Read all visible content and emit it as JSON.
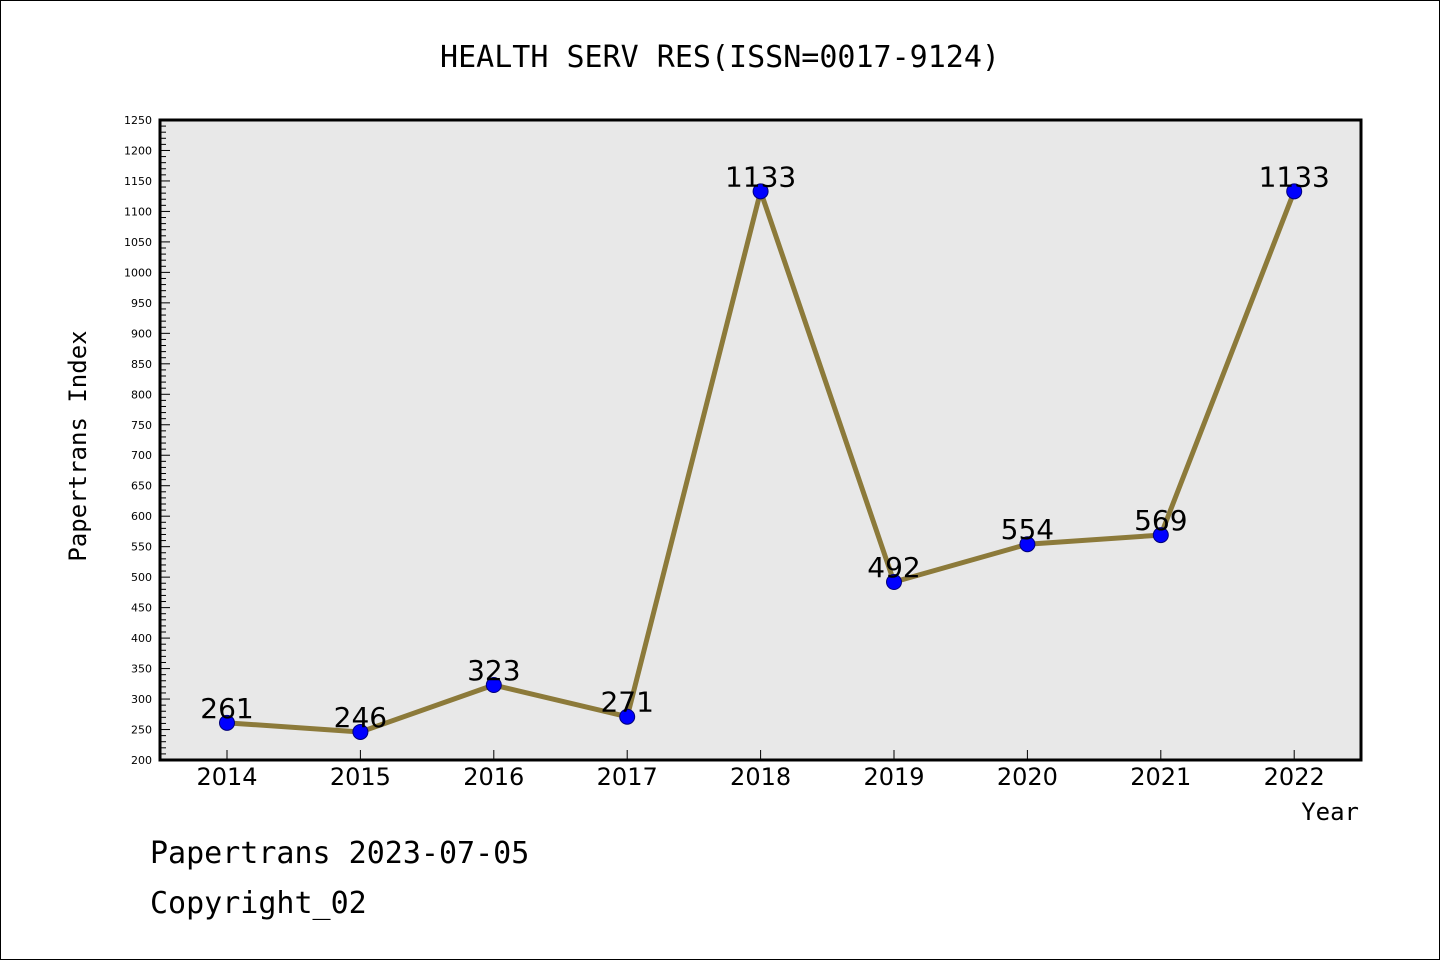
{
  "chart_data": {
    "type": "line",
    "title": "HEALTH SERV RES(ISSN=0017-9124)",
    "xlabel": "Year",
    "ylabel": "Papertrans Index",
    "x": [
      "2014",
      "2015",
      "2016",
      "2017",
      "2018",
      "2019",
      "2020",
      "2021",
      "2022"
    ],
    "series": [
      {
        "values": [
          261,
          246,
          323,
          271,
          1133,
          492,
          554,
          569,
          1133
        ]
      }
    ],
    "data_labels": [
      "261",
      "246",
      "323",
      "271",
      "1133",
      "492",
      "554",
      "569",
      "1133"
    ],
    "ylim": [
      200,
      1250
    ],
    "y_ticks": [
      200,
      250,
      300,
      350,
      400,
      450,
      500,
      550,
      600,
      650,
      700,
      750,
      800,
      850,
      900,
      950,
      1000,
      1050,
      1100,
      1150,
      1200,
      1250
    ],
    "grid": false,
    "legend": "none",
    "colors": {
      "line": "#8c7a3a",
      "marker": "#0000ff",
      "plot_background": "#e8e8e8"
    }
  },
  "footer": {
    "line1": "Papertrans 2023-07-05",
    "line2": "Copyright_02"
  }
}
